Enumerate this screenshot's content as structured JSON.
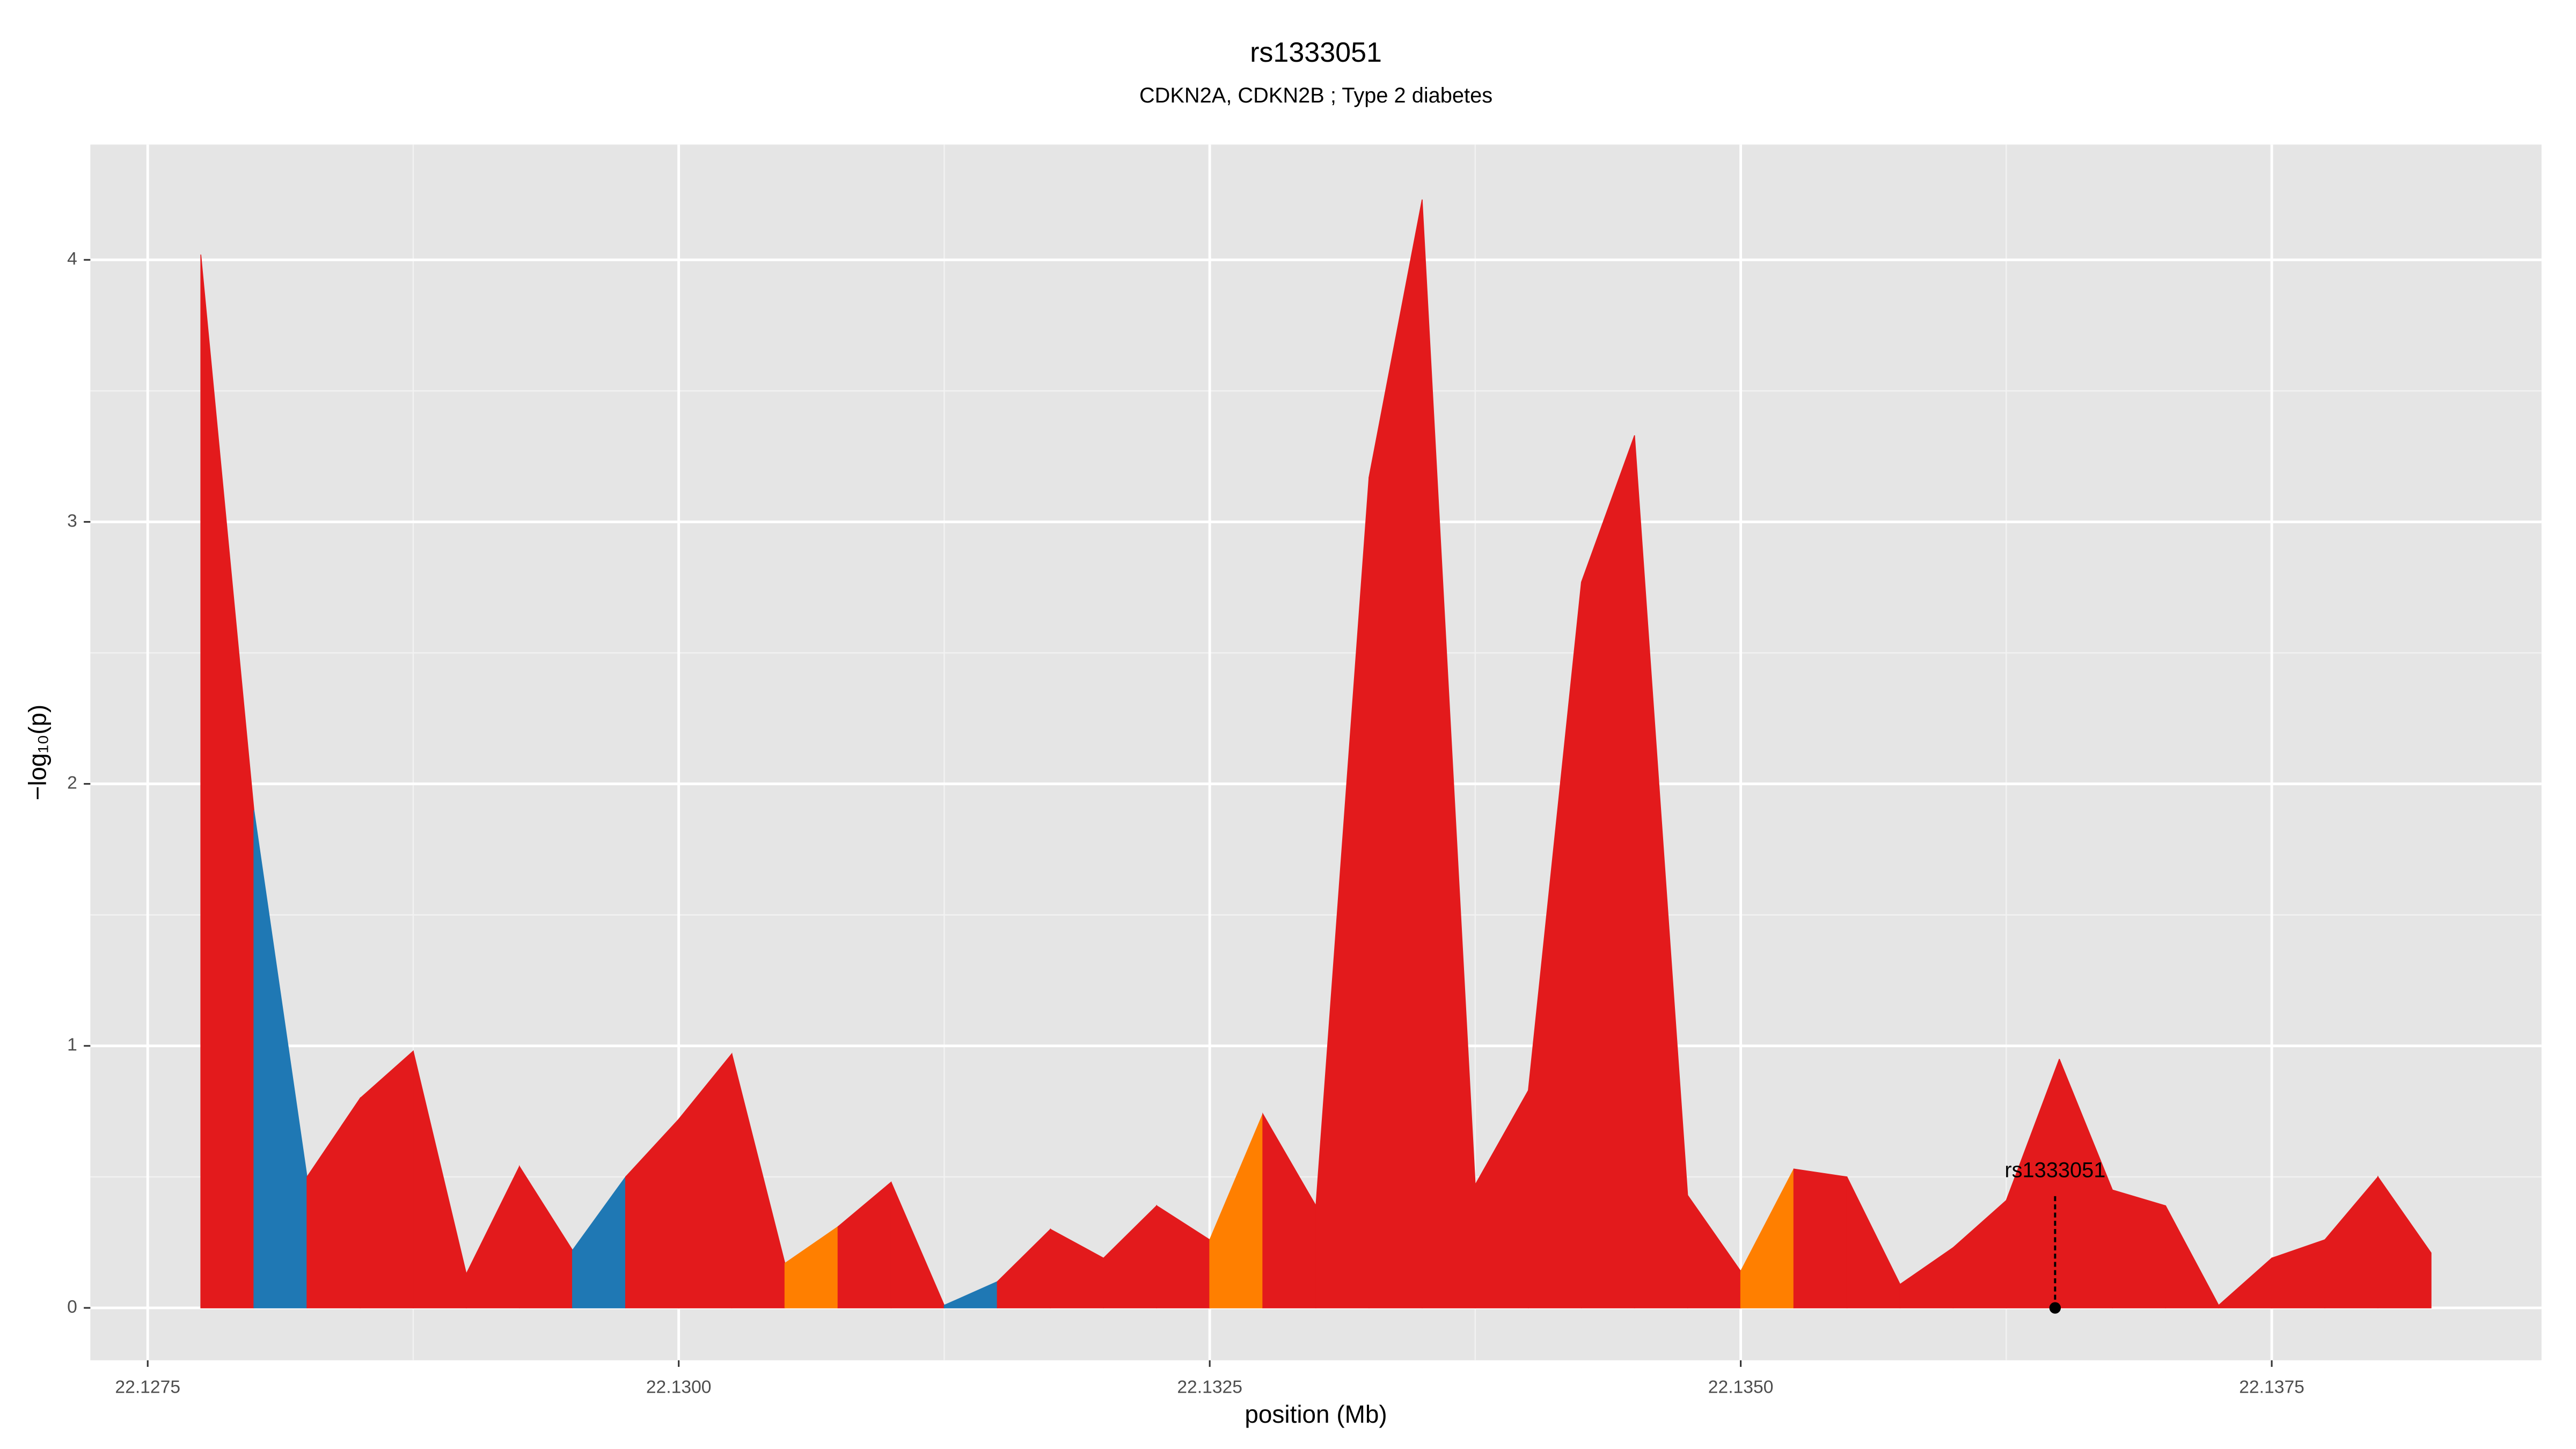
{
  "chart_data": {
    "type": "area",
    "title": "rs1333051",
    "subtitle": "CDKN2A, CDKN2B ; Type 2 diabetes",
    "xlabel": "position (Mb)",
    "ylabel": "−log₁₀(p)",
    "x": [
      22.12775,
      22.128,
      22.12825,
      22.1285,
      22.12875,
      22.129,
      22.12925,
      22.1295,
      22.12975,
      22.13,
      22.13025,
      22.1305,
      22.13075,
      22.131,
      22.13125,
      22.1315,
      22.13175,
      22.132,
      22.13225,
      22.1325,
      22.13275,
      22.133,
      22.13325,
      22.1335,
      22.13375,
      22.134,
      22.13425,
      22.1345,
      22.13475,
      22.135,
      22.13525,
      22.1355,
      22.13575,
      22.136,
      22.13625,
      22.1365,
      22.13675,
      22.137,
      22.13725,
      22.1375,
      22.13775,
      22.138,
      22.13825
    ],
    "values": [
      4.02,
      1.9,
      0.5,
      0.8,
      0.98,
      0.13,
      0.54,
      0.22,
      0.5,
      0.72,
      0.97,
      0.17,
      0.31,
      0.48,
      0.01,
      0.1,
      0.3,
      0.19,
      0.39,
      0.26,
      0.74,
      0.39,
      3.17,
      4.23,
      0.47,
      0.83,
      2.77,
      3.33,
      0.43,
      0.14,
      0.53,
      0.5,
      0.09,
      0.23,
      0.41,
      0.95,
      0.45,
      0.39,
      0.01,
      0.19,
      0.26,
      0.5,
      0.21
    ],
    "segment_colors": [
      "#e31a1c",
      "#1f78b4",
      "#e31a1c",
      "#e31a1c",
      "#e31a1c",
      "#e31a1c",
      "#e31a1c",
      "#1f78b4",
      "#e31a1c",
      "#e31a1c",
      "#e31a1c",
      "#ff7f00",
      "#e31a1c",
      "#e31a1c",
      "#1f78b4",
      "#e31a1c",
      "#e31a1c",
      "#e31a1c",
      "#e31a1c",
      "#ff7f00",
      "#e31a1c",
      "#e31a1c",
      "#e31a1c",
      "#e31a1c",
      "#e31a1c",
      "#e31a1c",
      "#e31a1c",
      "#e31a1c",
      "#e31a1c",
      "#ff7f00",
      "#e31a1c",
      "#e31a1c",
      "#e31a1c",
      "#e31a1c",
      "#e31a1c",
      "#e31a1c",
      "#e31a1c",
      "#e31a1c",
      "#e31a1c",
      "#e31a1c",
      "#e31a1c",
      "#e31a1c"
    ],
    "xlim": [
      22.12723,
      22.13877
    ],
    "ylim": [
      -0.2,
      4.44
    ],
    "xticks": [
      22.1275,
      {
        "value": 22.13,
        "label": "22.1300"
      },
      22.1325,
      {
        "value": 22.135,
        "label": "22.1350"
      },
      22.1375
    ],
    "yticks": [
      0,
      1,
      2,
      3,
      4
    ],
    "grid": true,
    "annotation": {
      "text": "rs1333051",
      "x": 22.13648,
      "y": 0
    }
  }
}
